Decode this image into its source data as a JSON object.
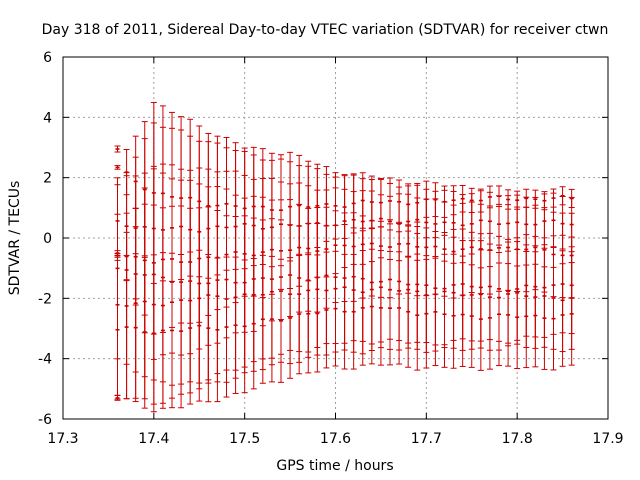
{
  "chart_data": {
    "type": "errorbar",
    "title": "Day 318 of 2011, Sidereal Day-to-day VTEC variation (SDTVAR) for receiver ctwn",
    "xlabel": "GPS time / hours",
    "ylabel": "SDTVAR / TECUs",
    "xlim": [
      17.3,
      17.9
    ],
    "ylim": [
      -6,
      6
    ],
    "xticks": [
      17.3,
      17.4,
      17.5,
      17.6,
      17.7,
      17.8,
      17.9
    ],
    "xtick_labels": [
      "17.3",
      "17.4",
      "17.5",
      "17.6",
      "17.7",
      "17.8",
      "17.9"
    ],
    "yticks": [
      -6,
      -4,
      -2,
      0,
      2,
      4,
      6
    ],
    "ytick_labels": [
      "-6",
      "-4",
      "-2",
      "0",
      "2",
      "4",
      "6"
    ],
    "grid": true,
    "color": "#cc0000",
    "x_start": 17.36,
    "x_end": 17.86,
    "n_points": 51,
    "series": [
      {
        "name": "series-1",
        "knots_x": [
          17.36,
          17.4,
          17.45,
          17.5,
          17.55,
          17.6,
          17.65,
          17.7,
          17.75,
          17.8,
          17.86
        ],
        "y": [
          2.3,
          1.5,
          1.2,
          1.0,
          1.0,
          1.1,
          1.2,
          1.2,
          1.3,
          1.3,
          1.3
        ],
        "err": [
          0.0,
          3.0,
          2.5,
          2.0,
          1.8,
          1.1,
          0.8,
          0.6,
          0.4,
          0.3,
          0.3
        ]
      },
      {
        "name": "series-2",
        "knots_x": [
          17.36,
          17.4,
          17.45,
          17.5,
          17.55,
          17.6,
          17.65,
          17.7,
          17.75,
          17.8,
          17.86
        ],
        "y": [
          0.5,
          0.3,
          0.3,
          0.4,
          0.4,
          0.5,
          0.6,
          0.5,
          0.5,
          0.5,
          0.5
        ],
        "err": [
          1.2,
          3.5,
          3.0,
          2.4,
          2.1,
          1.6,
          1.3,
          1.1,
          1.0,
          0.9,
          0.9
        ]
      },
      {
        "name": "series-3",
        "knots_x": [
          17.36,
          17.4,
          17.45,
          17.5,
          17.55,
          17.6,
          17.65,
          17.7,
          17.75,
          17.8,
          17.86
        ],
        "y": [
          -0.5,
          -0.8,
          -0.7,
          -0.5,
          -0.4,
          -0.3,
          -0.2,
          -0.3,
          -0.4,
          -0.3,
          -0.6
        ],
        "err": [
          0.0,
          3.2,
          3.0,
          2.6,
          2.2,
          1.9,
          1.7,
          1.6,
          1.5,
          1.4,
          1.4
        ]
      },
      {
        "name": "series-4",
        "knots_x": [
          17.36,
          17.4,
          17.45,
          17.5,
          17.55,
          17.6,
          17.65,
          17.7,
          17.75,
          17.8,
          17.86
        ],
        "y": [
          -1.0,
          -1.3,
          -1.5,
          -1.4,
          -1.3,
          -1.3,
          -1.4,
          -1.6,
          -1.6,
          -1.7,
          -1.5
        ],
        "err": [
          3.0,
          3.5,
          3.3,
          2.8,
          2.5,
          2.2,
          2.0,
          1.9,
          1.8,
          1.7,
          1.6
        ]
      },
      {
        "name": "series-5",
        "knots_x": [
          17.36,
          17.4,
          17.45,
          17.5,
          17.55,
          17.6,
          17.65,
          17.7,
          17.75,
          17.8,
          17.86
        ],
        "y": [
          -2.2,
          -2.2,
          -2.0,
          -1.9,
          -1.8,
          -1.7,
          -1.7,
          -1.8,
          -1.9,
          -1.9,
          -2.0
        ],
        "err": [
          3.0,
          3.3,
          3.0,
          2.6,
          2.3,
          2.1,
          2.0,
          1.9,
          1.8,
          1.7,
          1.7
        ]
      },
      {
        "name": "series-6",
        "knots_x": [
          17.36,
          17.4,
          17.45,
          17.5,
          17.55,
          17.6,
          17.65,
          17.7,
          17.75,
          17.8,
          17.86
        ],
        "y": [
          -3.0,
          -3.1,
          -3.0,
          -2.9,
          -2.6,
          -2.4,
          -2.3,
          -2.5,
          -2.6,
          -2.6,
          -2.6
        ],
        "err": [
          2.3,
          2.6,
          2.5,
          2.2,
          2.0,
          1.9,
          1.9,
          1.8,
          1.7,
          1.7,
          1.7
        ]
      }
    ],
    "annotations": [
      {
        "x": 17.36,
        "y": 2.95,
        "err": 0.1
      },
      {
        "x": 17.36,
        "y": -5.3,
        "err": 0.08
      },
      {
        "x": 17.36,
        "y": -0.5,
        "err": 0.08
      }
    ]
  }
}
